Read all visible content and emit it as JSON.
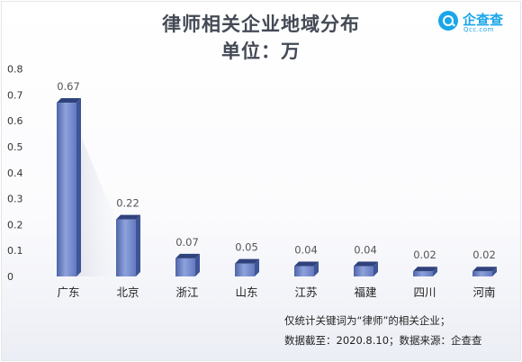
{
  "title": {
    "line1": "律师相关企业地域分布",
    "line2": "单位：万"
  },
  "brand": {
    "name": "企查查",
    "sub": "Qcc.com",
    "icon": "magnifier-logo-icon",
    "color": "#1aa6e8"
  },
  "chart_data": {
    "type": "bar",
    "categories": [
      "广东",
      "北京",
      "浙江",
      "山东",
      "江苏",
      "福建",
      "四川",
      "河南"
    ],
    "values": [
      0.67,
      0.22,
      0.07,
      0.05,
      0.04,
      0.04,
      0.02,
      0.02
    ],
    "value_labels": [
      "0.67",
      "0.22",
      "0.07",
      "0.05",
      "0.04",
      "0.04",
      "0.02",
      "0.02"
    ],
    "yticks": [
      "0",
      "0.1",
      "0.2",
      "0.3",
      "0.4",
      "0.5",
      "0.6",
      "0.7",
      "0.8"
    ],
    "ylim": [
      0,
      0.8
    ],
    "bar_color": "#6f86c6",
    "grid": false,
    "legend": "none"
  },
  "footnote": {
    "line1": "仅统计关键词为“律师”的相关企业；",
    "line2": "数据截至：2020.8.10；数据来源：企查查"
  }
}
